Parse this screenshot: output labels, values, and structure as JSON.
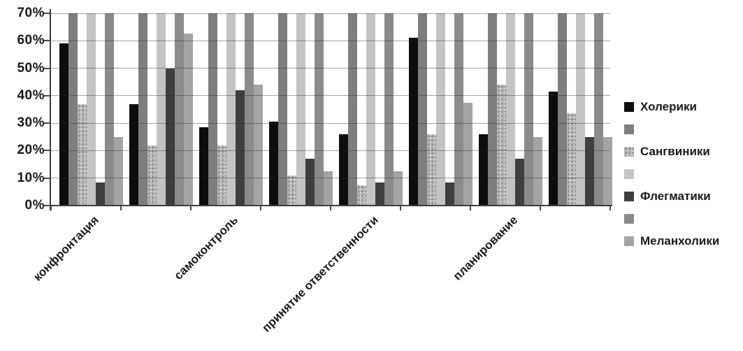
{
  "chart_data": {
    "type": "bar",
    "title": "",
    "xlabel": "",
    "ylabel": "",
    "categories": [
      "конфронтация",
      "",
      "самоконтроль",
      "",
      "принятие ответственности",
      "",
      "планирование",
      ""
    ],
    "series": [
      {
        "name": "Холерики",
        "color": "#0d0d0d",
        "values": [
          59,
          37,
          28.5,
          30.5,
          26,
          61,
          26,
          41.5
        ]
      },
      {
        "name": "",
        "color": "#7e7e7e",
        "clipped_at_axis_max": true,
        "values": [
          70,
          70,
          70,
          70,
          70,
          70,
          70,
          70
        ]
      },
      {
        "name": "Сангвиники",
        "color": "#b5b5b5",
        "texture": "speckled",
        "values": [
          37,
          22,
          22,
          11,
          7.5,
          26,
          44,
          33.5
        ]
      },
      {
        "name": "",
        "color": "#c4c4c4",
        "clipped_at_axis_max": true,
        "values": [
          70,
          70,
          70,
          70,
          70,
          70,
          70,
          70
        ]
      },
      {
        "name": "Флегматики",
        "color": "#3f3f3f",
        "values": [
          8.5,
          50,
          42,
          17,
          8.5,
          8.5,
          17,
          25
        ]
      },
      {
        "name": "",
        "color": "#8b8b8b",
        "clipped_at_axis_max": true,
        "values": [
          70,
          70,
          70,
          70,
          70,
          70,
          70,
          70
        ]
      },
      {
        "name": "Меланхолики",
        "color": "#a4a4a4",
        "values": [
          25,
          62.5,
          44,
          12.5,
          12.5,
          37.5,
          25,
          25
        ]
      }
    ],
    "y_ticks": [
      "70%",
      "60%",
      "50%",
      "40%",
      "30%",
      "20%",
      "10%",
      "0%"
    ],
    "ylim": [
      0,
      70
    ],
    "layout": {
      "grid": true,
      "legend_position": "right",
      "x_labels_rotation_deg": -45,
      "x_label_shown_for_groups": [
        1,
        3,
        5,
        7
      ],
      "group_count": 8,
      "bars_per_group": 7
    }
  }
}
